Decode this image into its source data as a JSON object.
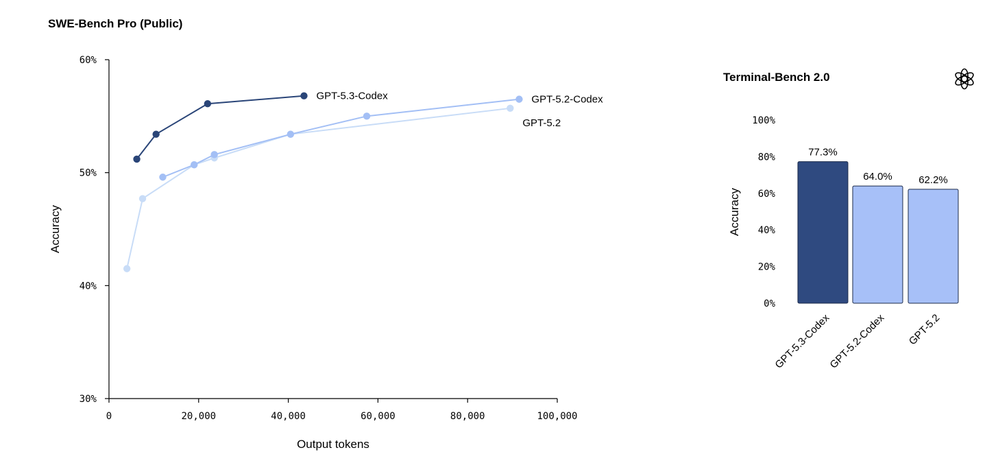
{
  "chart_data": [
    {
      "type": "line",
      "title": "SWE-Bench Pro (Public)",
      "xlabel": "Output tokens",
      "ylabel": "Accuracy",
      "xlim": [
        0,
        100000
      ],
      "ylim": [
        30,
        60
      ],
      "x_ticks": [
        0,
        20000,
        40000,
        60000,
        80000,
        100000
      ],
      "x_tick_labels": [
        "0",
        "20,000",
        "40,000",
        "60,000",
        "80,000",
        "100,000"
      ],
      "y_ticks": [
        30,
        40,
        50,
        60
      ],
      "y_tick_labels": [
        "30%",
        "40%",
        "50%",
        "60%"
      ],
      "grid": false,
      "series": [
        {
          "name": "GPT-5.2",
          "color": "#c8dcf7",
          "points": [
            [
              4000,
              41.5
            ],
            [
              7500,
              47.7
            ],
            [
              19000,
              50.7
            ],
            [
              23500,
              51.3
            ],
            [
              40500,
              53.4
            ],
            [
              89500,
              55.7
            ]
          ]
        },
        {
          "name": "GPT-5.2-Codex",
          "color": "#a3bff5",
          "points": [
            [
              12000,
              49.6
            ],
            [
              19000,
              50.7
            ],
            [
              23500,
              51.6
            ],
            [
              40500,
              53.4
            ],
            [
              57500,
              55.0
            ],
            [
              91500,
              56.5
            ]
          ]
        },
        {
          "name": "GPT-5.3-Codex",
          "color": "#2a4578",
          "points": [
            [
              6200,
              51.2
            ],
            [
              10500,
              53.4
            ],
            [
              22000,
              56.1
            ],
            [
              43500,
              56.8
            ]
          ]
        }
      ]
    },
    {
      "type": "bar",
      "title": "Terminal-Bench 2.0",
      "ylabel": "Accuracy",
      "ylim": [
        0,
        100
      ],
      "y_ticks": [
        0,
        20,
        40,
        60,
        80,
        100
      ],
      "y_tick_labels": [
        "0%",
        "20%",
        "40%",
        "60%",
        "80%",
        "100%"
      ],
      "categories": [
        "GPT-5.3-Codex",
        "GPT-5.2-Codex",
        "GPT-5.2"
      ],
      "values": [
        77.3,
        64.0,
        62.2
      ],
      "value_labels": [
        "77.3%",
        "64.0%",
        "62.2%"
      ],
      "colors": [
        "#2f4a80",
        "#a7c0f8",
        "#a7c0f8"
      ],
      "grid": false
    }
  ],
  "logo": {
    "icon": "openai-logo-icon"
  }
}
